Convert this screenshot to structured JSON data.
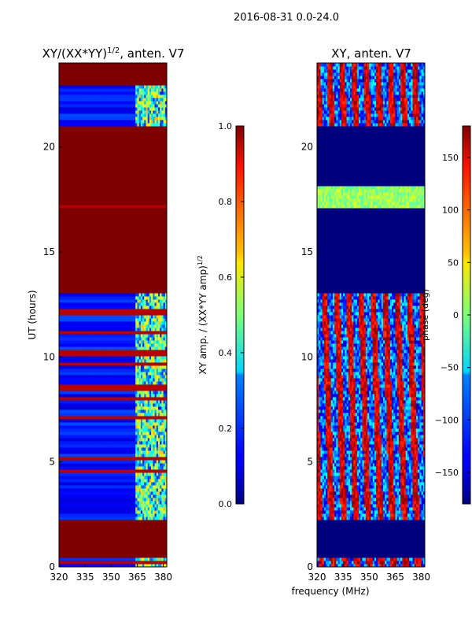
{
  "suptitle": "2016-08-31 0.0-24.0",
  "chart_data": [
    {
      "type": "heatmap",
      "title_main": "XY/(XX*YY)",
      "title_sup": "1/2",
      "title_tail": ", anten. V7",
      "ylabel": "UT (hours)",
      "xlabel": "",
      "x_ticks": [
        320,
        335,
        350,
        365,
        380
      ],
      "x_range": [
        320,
        382
      ],
      "y_ticks": [
        0,
        5,
        10,
        15,
        20
      ],
      "y_range": [
        0,
        24
      ],
      "colorbar": {
        "label_main": "XY amp. / (XX*YY amp)",
        "label_sup": "1/2",
        "range": [
          0.0,
          1.0
        ],
        "ticks": [
          "0.0",
          "0.2",
          "0.4",
          "0.6",
          "0.8",
          "1.0"
        ],
        "tick_values": [
          0.0,
          0.2,
          0.4,
          0.6,
          0.8,
          1.0
        ]
      },
      "saturated_bands_hours": [
        [
          0.4,
          2.3
        ],
        [
          13.0,
          17.1
        ],
        [
          17.3,
          18.1
        ],
        [
          18.2,
          21.0
        ],
        [
          23.0,
          24.0
        ]
      ],
      "active_band_mhz": [
        364,
        382
      ]
    },
    {
      "type": "heatmap",
      "title_main": "XY, anten. V7",
      "ylabel": "",
      "xlabel": "frequency (MHz)",
      "x_ticks": [
        320,
        335,
        350,
        365,
        380
      ],
      "x_range": [
        320,
        382
      ],
      "y_ticks": [
        0,
        5,
        10,
        15,
        20
      ],
      "y_range": [
        0,
        24
      ],
      "colorbar": {
        "label_main": "phase (deg)",
        "range": [
          -180,
          180
        ],
        "ticks": [
          "150",
          "100",
          "50",
          "0",
          "−50",
          "−100",
          "−150"
        ],
        "tick_values": [
          150,
          100,
          50,
          0,
          -50,
          -100,
          -150
        ]
      },
      "blank_bands_hours": [
        [
          0.4,
          2.3
        ],
        [
          13.0,
          17.1
        ],
        [
          18.2,
          21.0
        ]
      ],
      "greenish_band_hours": [
        17.1,
        18.2
      ]
    }
  ]
}
